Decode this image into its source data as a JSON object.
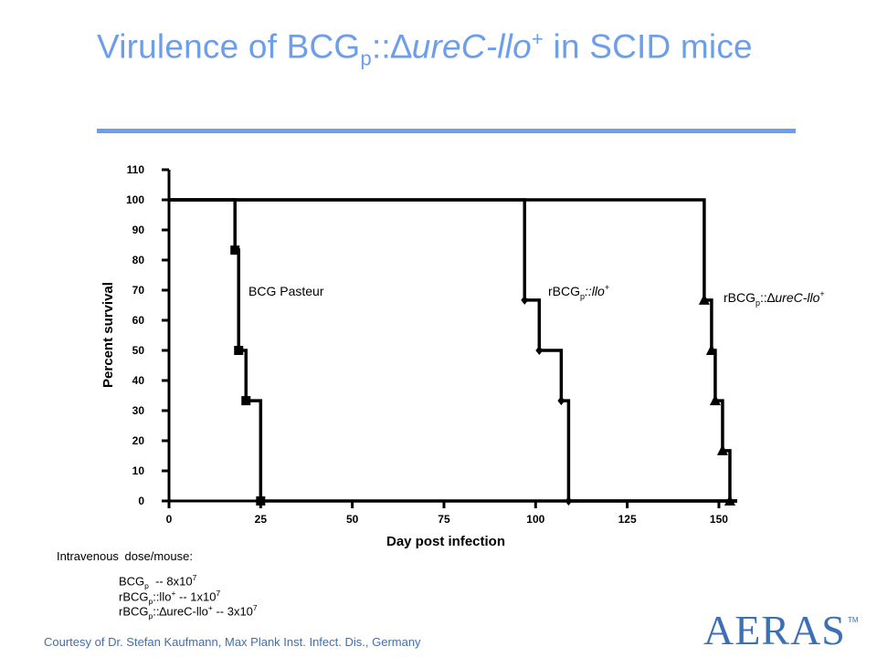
{
  "title": {
    "prefix": "Virulence of BCG",
    "sub": "p",
    "mid": "::∆",
    "italic": "ureC-llo",
    "sup": "+",
    "suffix": " in SCID mice"
  },
  "chart_data": {
    "type": "line",
    "step": true,
    "xlabel": "Day post infection",
    "ylabel": "Percent survival",
    "xlim": [
      0,
      155
    ],
    "ylim": [
      0,
      110
    ],
    "xticks": [
      0,
      25,
      50,
      75,
      100,
      125,
      150
    ],
    "yticks": [
      0,
      10,
      20,
      30,
      40,
      50,
      60,
      70,
      80,
      90,
      100,
      110
    ],
    "series": [
      {
        "name": "BCG Pasteur",
        "marker": "square",
        "x": [
          0,
          18,
          19,
          21,
          25,
          155
        ],
        "y": [
          100,
          83.3,
          50,
          33.3,
          0,
          0
        ],
        "marker_x": [
          18,
          19,
          21,
          25
        ],
        "marker_y": [
          83.3,
          50,
          33.3,
          0
        ]
      },
      {
        "name": "rBCGp::llo+",
        "marker": "diamond",
        "x": [
          0,
          97,
          101,
          107,
          109,
          155
        ],
        "y": [
          100,
          66.7,
          50,
          33.3,
          0,
          0
        ],
        "marker_x": [
          97,
          101,
          107,
          109
        ],
        "marker_y": [
          66.7,
          50,
          33.3,
          0
        ]
      },
      {
        "name": "rBCGp::∆ureC-llo+",
        "marker": "triangle",
        "x": [
          0,
          146,
          148,
          149,
          151,
          153,
          155
        ],
        "y": [
          100,
          66.7,
          50,
          33.3,
          16.7,
          0,
          0
        ],
        "marker_x": [
          146,
          148,
          149,
          151,
          153
        ],
        "marker_y": [
          66.7,
          50,
          33.3,
          16.7,
          0
        ]
      }
    ]
  },
  "labels": {
    "bcg": "BCG Pasteur",
    "llo": {
      "main": "rBCG",
      "sub": "p",
      "italic": "::llo",
      "sup": "+"
    },
    "ure": {
      "main": "rBCG",
      "sub": "p",
      "mid": "::∆",
      "italic": "ureC-llo",
      "sup": "+"
    }
  },
  "dose": {
    "heading": "Intravenous dose/mouse:",
    "lines": [
      {
        "a": "BCG",
        "sub": "p",
        "b": "  -- 8x10",
        "sup": "7"
      },
      {
        "a": "rBCG",
        "sub": "p",
        "b": "::llo",
        "sup1": "+",
        "c": " -- 1x10",
        "sup": "7"
      },
      {
        "a": "rBCG",
        "sub": "p",
        "b": "::∆ureC-llo",
        "sup1": "+",
        "c": " -- 3x10",
        "sup": "7"
      }
    ]
  },
  "credit": "Courtesy of Dr. Stefan Kaufmann, Max Plank Inst. Infect. Dis., Germany",
  "logo": {
    "text": "AERAS",
    "tm": "TM"
  }
}
